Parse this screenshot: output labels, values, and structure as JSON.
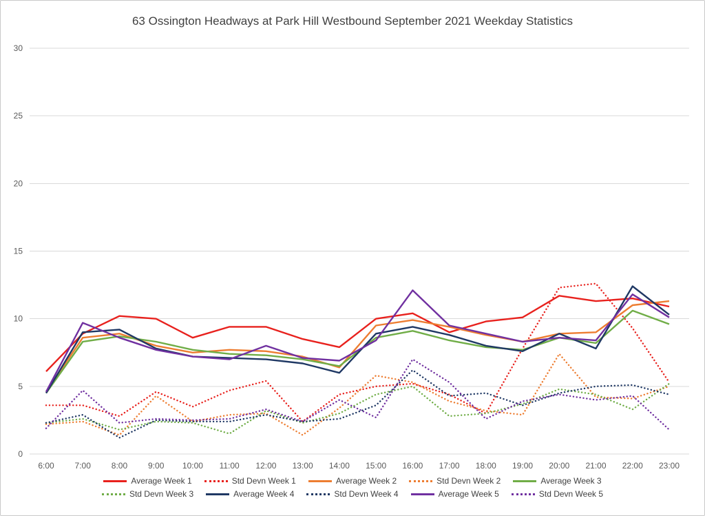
{
  "chart_data": {
    "type": "line",
    "title": "63 Ossington Headways at Park Hill Westbound September 2021 Weekday Statistics",
    "xlabel": "",
    "ylabel": "",
    "ylim": [
      0,
      30
    ],
    "y_ticks": [
      "0",
      "5",
      "10",
      "15",
      "20",
      "25",
      "30"
    ],
    "grid": "horizontal",
    "legend_position": "bottom",
    "categories": [
      "6:00",
      "7:00",
      "8:00",
      "9:00",
      "10:00",
      "11:00",
      "12:00",
      "13:00",
      "14:00",
      "15:00",
      "16:00",
      "17:00",
      "18:00",
      "19:00",
      "20:00",
      "21:00",
      "22:00",
      "23:00"
    ],
    "series": [
      {
        "name": "Average Week 1",
        "color": "#e8211d",
        "style": "solid",
        "values": [
          6.1,
          8.9,
          10.2,
          10.0,
          8.6,
          9.4,
          9.4,
          8.5,
          7.9,
          10.0,
          10.4,
          9.0,
          9.8,
          10.1,
          11.7,
          11.3,
          11.5,
          10.9
        ]
      },
      {
        "name": "Std Devn Week 1",
        "color": "#e8211d",
        "style": "dotted",
        "values": [
          3.6,
          3.6,
          2.8,
          4.6,
          3.5,
          4.7,
          5.4,
          2.4,
          4.4,
          5.0,
          5.2,
          4.4,
          3.0,
          7.8,
          12.3,
          12.6,
          9.3,
          5.3
        ]
      },
      {
        "name": "Average Week 2",
        "color": "#ed7d31",
        "style": "solid",
        "values": [
          4.6,
          8.6,
          8.9,
          8.0,
          7.5,
          7.7,
          7.6,
          7.2,
          6.4,
          9.5,
          9.9,
          9.4,
          8.8,
          8.3,
          8.9,
          9.0,
          11.0,
          11.3
        ]
      },
      {
        "name": "Std Devn Week 2",
        "color": "#ed7d31",
        "style": "dotted",
        "values": [
          2.2,
          2.4,
          1.4,
          4.3,
          2.4,
          2.9,
          3.0,
          1.4,
          3.4,
          5.8,
          5.3,
          3.9,
          3.2,
          2.9,
          7.4,
          4.2,
          4.1,
          5.0
        ]
      },
      {
        "name": "Average Week 3",
        "color": "#70ad47",
        "style": "solid",
        "values": [
          4.5,
          8.3,
          8.7,
          8.3,
          7.7,
          7.4,
          7.3,
          7.0,
          6.5,
          8.6,
          9.1,
          8.4,
          7.9,
          7.7,
          8.6,
          8.2,
          10.6,
          9.6
        ]
      },
      {
        "name": "Std Devn Week 3",
        "color": "#70ad47",
        "style": "dotted",
        "values": [
          2.3,
          2.6,
          1.8,
          2.4,
          2.3,
          1.5,
          3.2,
          2.3,
          3.0,
          4.4,
          5.0,
          2.8,
          3.0,
          3.7,
          4.8,
          4.4,
          3.3,
          5.2
        ]
      },
      {
        "name": "Average Week 4",
        "color": "#1f3864",
        "style": "solid",
        "values": [
          4.5,
          9.0,
          9.2,
          7.8,
          7.2,
          7.1,
          7.0,
          6.7,
          6.0,
          8.9,
          9.4,
          8.8,
          8.0,
          7.6,
          8.9,
          7.8,
          12.4,
          10.3
        ]
      },
      {
        "name": "Std Devn Week 4",
        "color": "#1f3864",
        "style": "dotted",
        "values": [
          2.3,
          2.9,
          1.2,
          2.5,
          2.4,
          2.4,
          2.9,
          2.4,
          2.6,
          3.6,
          6.2,
          4.3,
          4.5,
          3.6,
          4.5,
          5.0,
          5.1,
          4.4
        ]
      },
      {
        "name": "Average Week 5",
        "color": "#7030a0",
        "style": "solid",
        "values": [
          4.6,
          9.7,
          8.6,
          7.7,
          7.2,
          7.0,
          8.0,
          7.1,
          6.9,
          8.4,
          12.1,
          9.5,
          8.9,
          8.3,
          8.6,
          8.4,
          11.8,
          10.1
        ]
      },
      {
        "name": "Std Devn Week 5",
        "color": "#7030a0",
        "style": "dotted",
        "values": [
          1.9,
          4.7,
          2.3,
          2.6,
          2.5,
          2.6,
          3.3,
          2.4,
          4.0,
          2.7,
          7.0,
          5.3,
          2.6,
          3.9,
          4.4,
          4.0,
          4.3,
          1.8
        ]
      }
    ]
  }
}
